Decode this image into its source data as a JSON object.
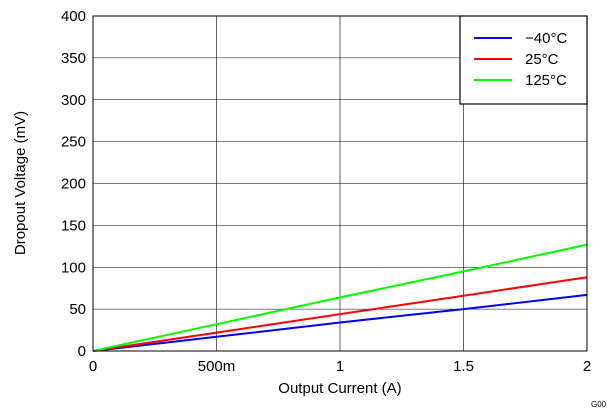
{
  "chart_data": {
    "type": "line",
    "title": "",
    "xlabel": "Output Current (A)",
    "ylabel": "Dropout Voltage (mV)",
    "xlim": [
      0,
      2
    ],
    "ylim": [
      0,
      400
    ],
    "x_ticks": [
      {
        "value": 0,
        "label": "0"
      },
      {
        "value": 0.5,
        "label": "500m"
      },
      {
        "value": 1,
        "label": "1"
      },
      {
        "value": 1.5,
        "label": "1.5"
      },
      {
        "value": 2,
        "label": "2"
      }
    ],
    "y_ticks": [
      {
        "value": 0,
        "label": "0"
      },
      {
        "value": 50,
        "label": "50"
      },
      {
        "value": 100,
        "label": "100"
      },
      {
        "value": 150,
        "label": "150"
      },
      {
        "value": 200,
        "label": "200"
      },
      {
        "value": 250,
        "label": "250"
      },
      {
        "value": 300,
        "label": "300"
      },
      {
        "value": 350,
        "label": "350"
      },
      {
        "value": 400,
        "label": "400"
      }
    ],
    "grid": true,
    "legend_position": "top-right",
    "series": [
      {
        "name": "−40°C",
        "color": "#0000ff",
        "x": [
          0,
          0.5,
          1,
          1.5,
          2
        ],
        "y": [
          0,
          17,
          34,
          50,
          67
        ]
      },
      {
        "name": "25°C",
        "color": "#ff0000",
        "x": [
          0,
          0.5,
          1,
          1.5,
          2
        ],
        "y": [
          0,
          22,
          44,
          66,
          88
        ]
      },
      {
        "name": "125°C",
        "color": "#00ff00",
        "x": [
          0,
          0.5,
          1,
          1.5,
          2
        ],
        "y": [
          0,
          32,
          64,
          95,
          127
        ]
      }
    ],
    "footnote": "G00"
  }
}
